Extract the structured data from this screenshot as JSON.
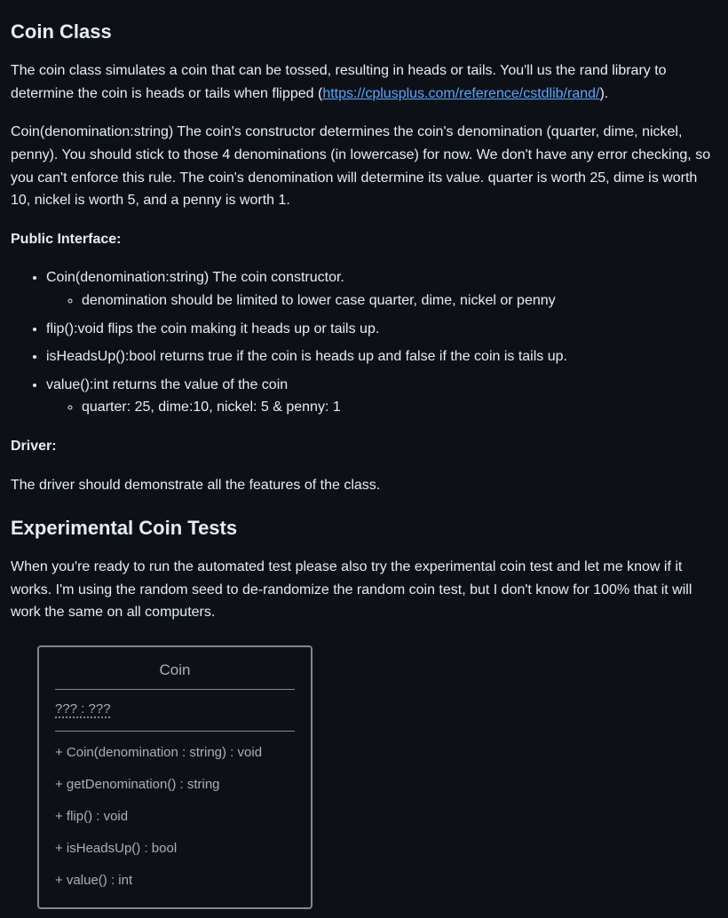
{
  "heading1": "Coin Class",
  "para1_before": "The coin class simulates a coin that can be tossed, resulting in heads or tails. You'll us the rand library to determine the coin is heads or tails when flipped (",
  "link_text": "https://cplusplus.com/reference/cstdlib/rand/",
  "link_href": "https://cplusplus.com/reference/cstdlib/rand/",
  "para1_after": ").",
  "para2": "Coin(denomination:string) The coin's constructor determines the coin's denomination (quarter, dime, nickel, penny). You should stick to those 4 denominations (in lowercase) for now. We don't have any error checking, so you can't enforce this rule. The coin's denomination will determine its value. quarter is worth 25, dime is worth 10, nickel is worth 5, and a penny is worth 1.",
  "public_interface_label": "Public Interface:",
  "list": {
    "item1": "Coin(denomination:string) The coin constructor.",
    "item1_sub1": "denomination should be limited to lower case quarter, dime, nickel or penny",
    "item2": "flip():void flips the coin making it heads up or tails up.",
    "item3": "isHeadsUp():bool returns true if the coin is heads up and false if the coin is tails up.",
    "item4": "value():int returns the value of the coin",
    "item4_sub1": "quarter: 25, dime:10, nickel: 5 & penny: 1"
  },
  "driver_label": "Driver:",
  "driver_text": "The driver should demonstrate all the features of the class.",
  "heading2": "Experimental Coin Tests",
  "para3": "When you're ready to run the automated test please also try the experimental coin test and let me know if it works. I'm using the random seed to de-randomize the random coin test, but I don't know for 100% that it will work the same on all computers.",
  "uml": {
    "title": "Coin",
    "attrs": "??? : ???",
    "methods": [
      "+ Coin(denomination : string) : void",
      "+ getDenomination() : string",
      "+ flip() : void",
      "+ isHeadsUp() : bool",
      "+ value() : int"
    ]
  }
}
